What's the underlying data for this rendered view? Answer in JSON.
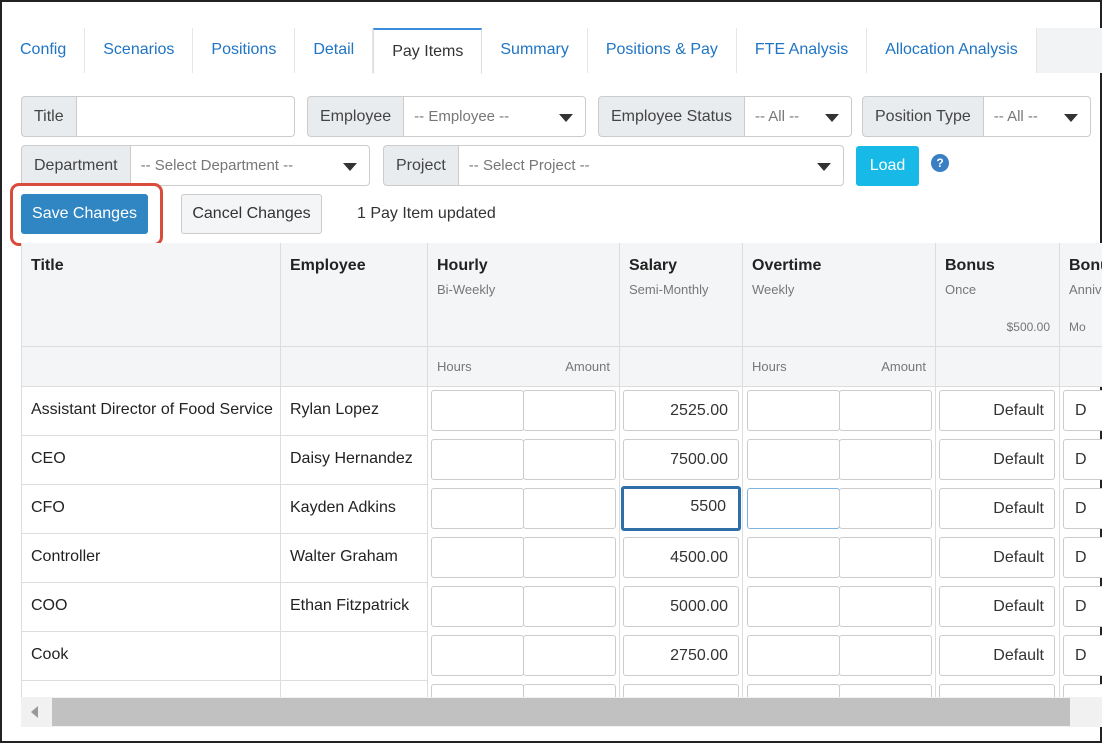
{
  "tabs": [
    "Config",
    "Scenarios",
    "Positions",
    "Detail",
    "Pay Items",
    "Summary",
    "Positions & Pay",
    "FTE Analysis",
    "Allocation Analysis"
  ],
  "filters": {
    "title_label": "Title",
    "title_value": "",
    "employee_label": "Employee",
    "employee_value": "-- Employee --",
    "status_label": "Employee Status",
    "status_value": "-- All --",
    "position_type_label": "Position Type",
    "position_type_value": "-- All --",
    "department_label": "Department",
    "department_value": "-- Select Department --",
    "project_label": "Project",
    "project_value": "-- Select Project --",
    "load_label": "Load"
  },
  "actions": {
    "save_label": "Save Changes",
    "cancel_label": "Cancel Changes",
    "status_text": "1 Pay Item updated"
  },
  "grid": {
    "headers": {
      "title": "Title",
      "employee": "Employee",
      "hourly": "Hourly",
      "hourly_freq": "Bi-Weekly",
      "salary": "Salary",
      "salary_freq": "Semi-Monthly",
      "overtime": "Overtime",
      "overtime_freq": "Weekly",
      "bonus": "Bonus",
      "bonus_freq": "Once",
      "bonus_amount": "$500.00",
      "bonus2": "Bonu",
      "bonus2_freq": "Anniv",
      "bonus2_amount": "Mo"
    },
    "subheaders": {
      "hours": "Hours",
      "amount": "Amount"
    },
    "rows": [
      {
        "title": "Assistant Director of Food Service",
        "employee": "Rylan Lopez",
        "salary": "2525.00",
        "bonus": "Default",
        "bonus2": "D"
      },
      {
        "title": "CEO",
        "employee": "Daisy Hernandez",
        "salary": "7500.00",
        "bonus": "Default",
        "bonus2": "D"
      },
      {
        "title": "CFO",
        "employee": "Kayden Adkins",
        "salary": "5500",
        "bonus": "Default",
        "bonus2": "D"
      },
      {
        "title": "Controller",
        "employee": "Walter Graham",
        "salary": "4500.00",
        "bonus": "Default",
        "bonus2": "D"
      },
      {
        "title": "COO",
        "employee": "Ethan Fitzpatrick",
        "salary": "5000.00",
        "bonus": "Default",
        "bonus2": "D"
      },
      {
        "title": "Cook",
        "employee": "",
        "salary": "2750.00",
        "bonus": "Default",
        "bonus2": "D"
      }
    ]
  },
  "colors": {
    "link": "#1f74c4",
    "primary_button": "#2f86c3",
    "load_button": "#17b9e6",
    "highlight": "#d94b3a"
  }
}
